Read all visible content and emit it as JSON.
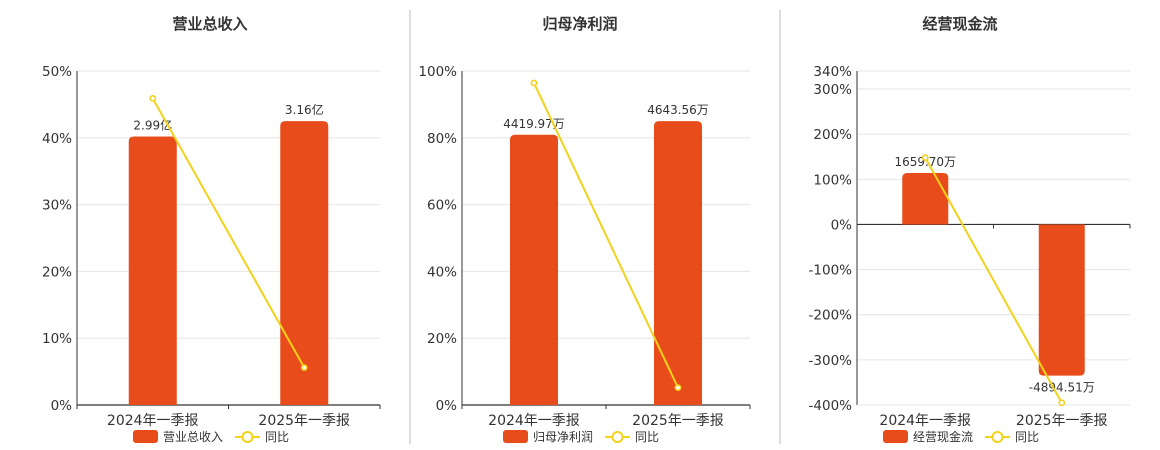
{
  "colors": {
    "bar": "#e84c1a",
    "line": "#f2d21a",
    "axis": "#333333",
    "grid": "#e6e6e6",
    "divider": "#bbbbbb",
    "text": "#333333"
  },
  "chart_data": [
    {
      "type": "bar",
      "title": "营业总收入",
      "categories": [
        "2024年一季报",
        "2025年一季报"
      ],
      "bar_values": [
        40.2,
        42.5
      ],
      "bar_labels": [
        "2.99亿",
        "3.16亿"
      ],
      "line_values": [
        45.9,
        5.6
      ],
      "ylim": [
        0,
        50
      ],
      "yticks": [
        0,
        10,
        20,
        30,
        40,
        50
      ],
      "ytick_labels": [
        "0%",
        "10%",
        "20%",
        "30%",
        "40%",
        "50%"
      ],
      "legend": {
        "bar": "营业总收入",
        "line": "同比"
      },
      "grid": true,
      "legend_position": "bottom"
    },
    {
      "type": "bar",
      "title": "归母净利润",
      "categories": [
        "2024年一季报",
        "2025年一季报"
      ],
      "bar_values": [
        80.9,
        85.0
      ],
      "bar_labels": [
        "4419.97万",
        "4643.56万"
      ],
      "line_values": [
        96.4,
        5.2
      ],
      "ylim": [
        0,
        100
      ],
      "yticks": [
        0,
        20,
        40,
        60,
        80,
        100
      ],
      "ytick_labels": [
        "0%",
        "20%",
        "40%",
        "60%",
        "80%",
        "100%"
      ],
      "legend": {
        "bar": "归母净利润",
        "line": "同比"
      },
      "grid": true,
      "legend_position": "bottom"
    },
    {
      "type": "bar",
      "title": "经营现金流",
      "categories": [
        "2024年一季报",
        "2025年一季报"
      ],
      "bar_values": [
        114,
        -335
      ],
      "bar_labels": [
        "1659.70万",
        "-4894.51万"
      ],
      "line_values": [
        148,
        -395
      ],
      "ylim": [
        -400,
        340
      ],
      "yticks": [
        -400,
        -300,
        -200,
        -100,
        0,
        100,
        200,
        300,
        340
      ],
      "ytick_labels": [
        "-400%",
        "-300%",
        "-200%",
        "-100%",
        "0%",
        "100%",
        "200%",
        "300%",
        "340%"
      ],
      "legend": {
        "bar": "经营现金流",
        "line": "同比"
      },
      "grid": true,
      "legend_position": "bottom"
    }
  ]
}
